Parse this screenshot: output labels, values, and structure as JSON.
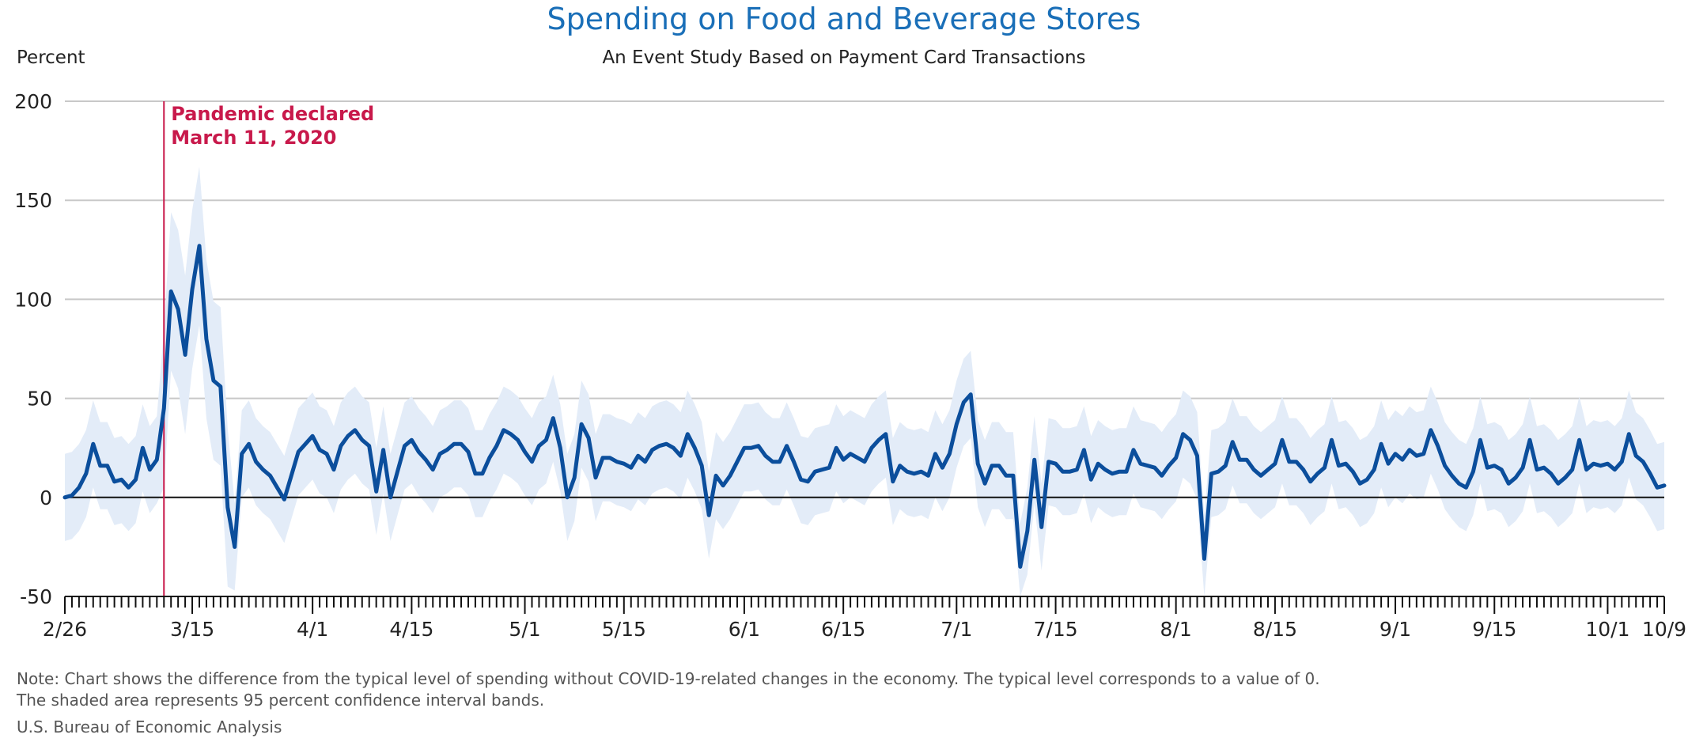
{
  "title": "Spending on Food and Beverage Stores",
  "subtitle": "An Event Study Based on Payment Card Transactions",
  "note_line1": "Note: Chart shows the difference from the typical level of spending without COVID-19-related changes in the economy. The typical level corresponds to a value of 0.",
  "note_line2": "The shaded area represents 95 percent confidence interval bands.",
  "source": "U.S. Bureau of Economic Analysis",
  "colors": {
    "title": "#1a6fb8",
    "line": "#0b4e9c",
    "band": "#e3ecf8",
    "event": "#c8194b",
    "grid": "#c8c8c8",
    "zero": "#111111"
  },
  "chart_data": {
    "type": "line",
    "ylabel": "Percent",
    "ylim": [
      -50,
      200
    ],
    "yticks": [
      -50,
      0,
      50,
      100,
      150,
      200
    ],
    "x_start": "2020-02-26",
    "x_end": "2020-10-09",
    "x_tick_labels": [
      {
        "date": "2020-02-26",
        "label": "2/26"
      },
      {
        "date": "2020-03-15",
        "label": "3/15"
      },
      {
        "date": "2020-04-01",
        "label": "4/1"
      },
      {
        "date": "2020-04-15",
        "label": "4/15"
      },
      {
        "date": "2020-05-01",
        "label": "5/1"
      },
      {
        "date": "2020-05-15",
        "label": "5/15"
      },
      {
        "date": "2020-06-01",
        "label": "6/1"
      },
      {
        "date": "2020-06-15",
        "label": "6/15"
      },
      {
        "date": "2020-07-01",
        "label": "7/1"
      },
      {
        "date": "2020-07-15",
        "label": "7/15"
      },
      {
        "date": "2020-08-01",
        "label": "8/1"
      },
      {
        "date": "2020-08-15",
        "label": "8/15"
      },
      {
        "date": "2020-09-01",
        "label": "9/1"
      },
      {
        "date": "2020-09-15",
        "label": "9/15"
      },
      {
        "date": "2020-10-01",
        "label": "10/1"
      },
      {
        "date": "2020-10-09",
        "label": "10/9"
      }
    ],
    "annotation": {
      "date": "2020-03-11",
      "line1": "Pandemic declared",
      "line2": "March 11, 2020"
    },
    "grid": true,
    "series": [
      {
        "values": [
          {
            "x": "2020-02-26",
            "y": 0
          },
          {
            "x": "2020-02-27",
            "y": 1
          },
          {
            "x": "2020-02-28",
            "y": 5
          },
          {
            "x": "2020-02-29",
            "y": 12
          },
          {
            "x": "2020-03-01",
            "y": 27
          },
          {
            "x": "2020-03-02",
            "y": 16
          },
          {
            "x": "2020-03-03",
            "y": 16
          },
          {
            "x": "2020-03-04",
            "y": 8
          },
          {
            "x": "2020-03-05",
            "y": 9
          },
          {
            "x": "2020-03-06",
            "y": 5
          },
          {
            "x": "2020-03-07",
            "y": 9
          },
          {
            "x": "2020-03-08",
            "y": 25
          },
          {
            "x": "2020-03-09",
            "y": 14
          },
          {
            "x": "2020-03-10",
            "y": 19
          },
          {
            "x": "2020-03-11",
            "y": 45
          },
          {
            "x": "2020-03-12",
            "y": 104
          },
          {
            "x": "2020-03-13",
            "y": 95
          },
          {
            "x": "2020-03-14",
            "y": 72
          },
          {
            "x": "2020-03-15",
            "y": 105
          },
          {
            "x": "2020-03-16",
            "y": 127
          },
          {
            "x": "2020-03-17",
            "y": 80
          },
          {
            "x": "2020-03-18",
            "y": 59
          },
          {
            "x": "2020-03-19",
            "y": 56
          },
          {
            "x": "2020-03-20",
            "y": -5
          },
          {
            "x": "2020-03-21",
            "y": -25
          },
          {
            "x": "2020-03-22",
            "y": 22
          },
          {
            "x": "2020-03-23",
            "y": 27
          },
          {
            "x": "2020-03-24",
            "y": 18
          },
          {
            "x": "2020-03-25",
            "y": 14
          },
          {
            "x": "2020-03-26",
            "y": 11
          },
          {
            "x": "2020-03-27",
            "y": 5
          },
          {
            "x": "2020-03-28",
            "y": -1
          },
          {
            "x": "2020-03-29",
            "y": 11
          },
          {
            "x": "2020-03-30",
            "y": 23
          },
          {
            "x": "2020-03-31",
            "y": 27
          },
          {
            "x": "2020-04-01",
            "y": 31
          },
          {
            "x": "2020-04-02",
            "y": 24
          },
          {
            "x": "2020-04-03",
            "y": 22
          },
          {
            "x": "2020-04-04",
            "y": 14
          },
          {
            "x": "2020-04-05",
            "y": 26
          },
          {
            "x": "2020-04-06",
            "y": 31
          },
          {
            "x": "2020-04-07",
            "y": 34
          },
          {
            "x": "2020-04-08",
            "y": 29
          },
          {
            "x": "2020-04-09",
            "y": 26
          },
          {
            "x": "2020-04-10",
            "y": 3
          },
          {
            "x": "2020-04-11",
            "y": 24
          },
          {
            "x": "2020-04-12",
            "y": 0
          },
          {
            "x": "2020-04-13",
            "y": 13
          },
          {
            "x": "2020-04-14",
            "y": 26
          },
          {
            "x": "2020-04-15",
            "y": 29
          },
          {
            "x": "2020-04-16",
            "y": 23
          },
          {
            "x": "2020-04-17",
            "y": 19
          },
          {
            "x": "2020-04-18",
            "y": 14
          },
          {
            "x": "2020-04-19",
            "y": 22
          },
          {
            "x": "2020-04-20",
            "y": 24
          },
          {
            "x": "2020-04-21",
            "y": 27
          },
          {
            "x": "2020-04-22",
            "y": 27
          },
          {
            "x": "2020-04-23",
            "y": 23
          },
          {
            "x": "2020-04-24",
            "y": 12
          },
          {
            "x": "2020-04-25",
            "y": 12
          },
          {
            "x": "2020-04-26",
            "y": 20
          },
          {
            "x": "2020-04-27",
            "y": 26
          },
          {
            "x": "2020-04-28",
            "y": 34
          },
          {
            "x": "2020-04-29",
            "y": 32
          },
          {
            "x": "2020-04-30",
            "y": 29
          },
          {
            "x": "2020-05-01",
            "y": 23
          },
          {
            "x": "2020-05-02",
            "y": 18
          },
          {
            "x": "2020-05-03",
            "y": 26
          },
          {
            "x": "2020-05-04",
            "y": 29
          },
          {
            "x": "2020-05-05",
            "y": 40
          },
          {
            "x": "2020-05-06",
            "y": 25
          },
          {
            "x": "2020-05-07",
            "y": 0
          },
          {
            "x": "2020-05-08",
            "y": 10
          },
          {
            "x": "2020-05-09",
            "y": 37
          },
          {
            "x": "2020-05-10",
            "y": 30
          },
          {
            "x": "2020-05-11",
            "y": 10
          },
          {
            "x": "2020-05-12",
            "y": 20
          },
          {
            "x": "2020-05-13",
            "y": 20
          },
          {
            "x": "2020-05-14",
            "y": 18
          },
          {
            "x": "2020-05-15",
            "y": 17
          },
          {
            "x": "2020-05-16",
            "y": 15
          },
          {
            "x": "2020-05-17",
            "y": 21
          },
          {
            "x": "2020-05-18",
            "y": 18
          },
          {
            "x": "2020-05-19",
            "y": 24
          },
          {
            "x": "2020-05-20",
            "y": 26
          },
          {
            "x": "2020-05-21",
            "y": 27
          },
          {
            "x": "2020-05-22",
            "y": 25
          },
          {
            "x": "2020-05-23",
            "y": 21
          },
          {
            "x": "2020-05-24",
            "y": 32
          },
          {
            "x": "2020-05-25",
            "y": 25
          },
          {
            "x": "2020-05-26",
            "y": 16
          },
          {
            "x": "2020-05-27",
            "y": -9
          },
          {
            "x": "2020-05-28",
            "y": 11
          },
          {
            "x": "2020-05-29",
            "y": 6
          },
          {
            "x": "2020-05-30",
            "y": 11
          },
          {
            "x": "2020-05-31",
            "y": 18
          },
          {
            "x": "2020-06-01",
            "y": 25
          },
          {
            "x": "2020-06-02",
            "y": 25
          },
          {
            "x": "2020-06-03",
            "y": 26
          },
          {
            "x": "2020-06-04",
            "y": 21
          },
          {
            "x": "2020-06-05",
            "y": 18
          },
          {
            "x": "2020-06-06",
            "y": 18
          },
          {
            "x": "2020-06-07",
            "y": 26
          },
          {
            "x": "2020-06-08",
            "y": 18
          },
          {
            "x": "2020-06-09",
            "y": 9
          },
          {
            "x": "2020-06-10",
            "y": 8
          },
          {
            "x": "2020-06-11",
            "y": 13
          },
          {
            "x": "2020-06-12",
            "y": 14
          },
          {
            "x": "2020-06-13",
            "y": 15
          },
          {
            "x": "2020-06-14",
            "y": 25
          },
          {
            "x": "2020-06-15",
            "y": 19
          },
          {
            "x": "2020-06-16",
            "y": 22
          },
          {
            "x": "2020-06-17",
            "y": 20
          },
          {
            "x": "2020-06-18",
            "y": 18
          },
          {
            "x": "2020-06-19",
            "y": 25
          },
          {
            "x": "2020-06-20",
            "y": 29
          },
          {
            "x": "2020-06-21",
            "y": 32
          },
          {
            "x": "2020-06-22",
            "y": 8
          },
          {
            "x": "2020-06-23",
            "y": 16
          },
          {
            "x": "2020-06-24",
            "y": 13
          },
          {
            "x": "2020-06-25",
            "y": 12
          },
          {
            "x": "2020-06-26",
            "y": 13
          },
          {
            "x": "2020-06-27",
            "y": 11
          },
          {
            "x": "2020-06-28",
            "y": 22
          },
          {
            "x": "2020-06-29",
            "y": 15
          },
          {
            "x": "2020-06-30",
            "y": 22
          },
          {
            "x": "2020-07-01",
            "y": 37
          },
          {
            "x": "2020-07-02",
            "y": 48
          },
          {
            "x": "2020-07-03",
            "y": 52
          },
          {
            "x": "2020-07-04",
            "y": 17
          },
          {
            "x": "2020-07-05",
            "y": 7
          },
          {
            "x": "2020-07-06",
            "y": 16
          },
          {
            "x": "2020-07-07",
            "y": 16
          },
          {
            "x": "2020-07-08",
            "y": 11
          },
          {
            "x": "2020-07-09",
            "y": 11
          },
          {
            "x": "2020-07-10",
            "y": -35
          },
          {
            "x": "2020-07-11",
            "y": -17
          },
          {
            "x": "2020-07-12",
            "y": 19
          },
          {
            "x": "2020-07-13",
            "y": -15
          },
          {
            "x": "2020-07-14",
            "y": 18
          },
          {
            "x": "2020-07-15",
            "y": 17
          },
          {
            "x": "2020-07-16",
            "y": 13
          },
          {
            "x": "2020-07-17",
            "y": 13
          },
          {
            "x": "2020-07-18",
            "y": 14
          },
          {
            "x": "2020-07-19",
            "y": 24
          },
          {
            "x": "2020-07-20",
            "y": 9
          },
          {
            "x": "2020-07-21",
            "y": 17
          },
          {
            "x": "2020-07-22",
            "y": 14
          },
          {
            "x": "2020-07-23",
            "y": 12
          },
          {
            "x": "2020-07-24",
            "y": 13
          },
          {
            "x": "2020-07-25",
            "y": 13
          },
          {
            "x": "2020-07-26",
            "y": 24
          },
          {
            "x": "2020-07-27",
            "y": 17
          },
          {
            "x": "2020-07-28",
            "y": 16
          },
          {
            "x": "2020-07-29",
            "y": 15
          },
          {
            "x": "2020-07-30",
            "y": 11
          },
          {
            "x": "2020-07-31",
            "y": 16
          },
          {
            "x": "2020-08-01",
            "y": 20
          },
          {
            "x": "2020-08-02",
            "y": 32
          },
          {
            "x": "2020-08-03",
            "y": 29
          },
          {
            "x": "2020-08-04",
            "y": 21
          },
          {
            "x": "2020-08-05",
            "y": -31
          },
          {
            "x": "2020-08-06",
            "y": 12
          },
          {
            "x": "2020-08-07",
            "y": 13
          },
          {
            "x": "2020-08-08",
            "y": 16
          },
          {
            "x": "2020-08-09",
            "y": 28
          },
          {
            "x": "2020-08-10",
            "y": 19
          },
          {
            "x": "2020-08-11",
            "y": 19
          },
          {
            "x": "2020-08-12",
            "y": 14
          },
          {
            "x": "2020-08-13",
            "y": 11
          },
          {
            "x": "2020-08-14",
            "y": 14
          },
          {
            "x": "2020-08-15",
            "y": 17
          },
          {
            "x": "2020-08-16",
            "y": 29
          },
          {
            "x": "2020-08-17",
            "y": 18
          },
          {
            "x": "2020-08-18",
            "y": 18
          },
          {
            "x": "2020-08-19",
            "y": 14
          },
          {
            "x": "2020-08-20",
            "y": 8
          },
          {
            "x": "2020-08-21",
            "y": 12
          },
          {
            "x": "2020-08-22",
            "y": 15
          },
          {
            "x": "2020-08-23",
            "y": 29
          },
          {
            "x": "2020-08-24",
            "y": 16
          },
          {
            "x": "2020-08-25",
            "y": 17
          },
          {
            "x": "2020-08-26",
            "y": 13
          },
          {
            "x": "2020-08-27",
            "y": 7
          },
          {
            "x": "2020-08-28",
            "y": 9
          },
          {
            "x": "2020-08-29",
            "y": 14
          },
          {
            "x": "2020-08-30",
            "y": 27
          },
          {
            "x": "2020-08-31",
            "y": 17
          },
          {
            "x": "2020-09-01",
            "y": 22
          },
          {
            "x": "2020-09-02",
            "y": 19
          },
          {
            "x": "2020-09-03",
            "y": 24
          },
          {
            "x": "2020-09-04",
            "y": 21
          },
          {
            "x": "2020-09-05",
            "y": 22
          },
          {
            "x": "2020-09-06",
            "y": 34
          },
          {
            "x": "2020-09-07",
            "y": 26
          },
          {
            "x": "2020-09-08",
            "y": 16
          },
          {
            "x": "2020-09-09",
            "y": 11
          },
          {
            "x": "2020-09-10",
            "y": 7
          },
          {
            "x": "2020-09-11",
            "y": 5
          },
          {
            "x": "2020-09-12",
            "y": 13
          },
          {
            "x": "2020-09-13",
            "y": 29
          },
          {
            "x": "2020-09-14",
            "y": 15
          },
          {
            "x": "2020-09-15",
            "y": 16
          },
          {
            "x": "2020-09-16",
            "y": 14
          },
          {
            "x": "2020-09-17",
            "y": 7
          },
          {
            "x": "2020-09-18",
            "y": 10
          },
          {
            "x": "2020-09-19",
            "y": 15
          },
          {
            "x": "2020-09-20",
            "y": 29
          },
          {
            "x": "2020-09-21",
            "y": 14
          },
          {
            "x": "2020-09-22",
            "y": 15
          },
          {
            "x": "2020-09-23",
            "y": 12
          },
          {
            "x": "2020-09-24",
            "y": 7
          },
          {
            "x": "2020-09-25",
            "y": 10
          },
          {
            "x": "2020-09-26",
            "y": 14
          },
          {
            "x": "2020-09-27",
            "y": 29
          },
          {
            "x": "2020-09-28",
            "y": 14
          },
          {
            "x": "2020-09-29",
            "y": 17
          },
          {
            "x": "2020-09-30",
            "y": 16
          },
          {
            "x": "2020-10-01",
            "y": 17
          },
          {
            "x": "2020-10-02",
            "y": 14
          },
          {
            "x": "2020-10-03",
            "y": 18
          },
          {
            "x": "2020-10-04",
            "y": 32
          },
          {
            "x": "2020-10-05",
            "y": 21
          },
          {
            "x": "2020-10-06",
            "y": 18
          },
          {
            "x": "2020-10-07",
            "y": 12
          },
          {
            "x": "2020-10-08",
            "y": 5
          },
          {
            "x": "2020-10-09",
            "y": 6
          }
        ],
        "ci_halfwidth_default": 22,
        "ci_halfwidth_peak": 40
      }
    ]
  }
}
